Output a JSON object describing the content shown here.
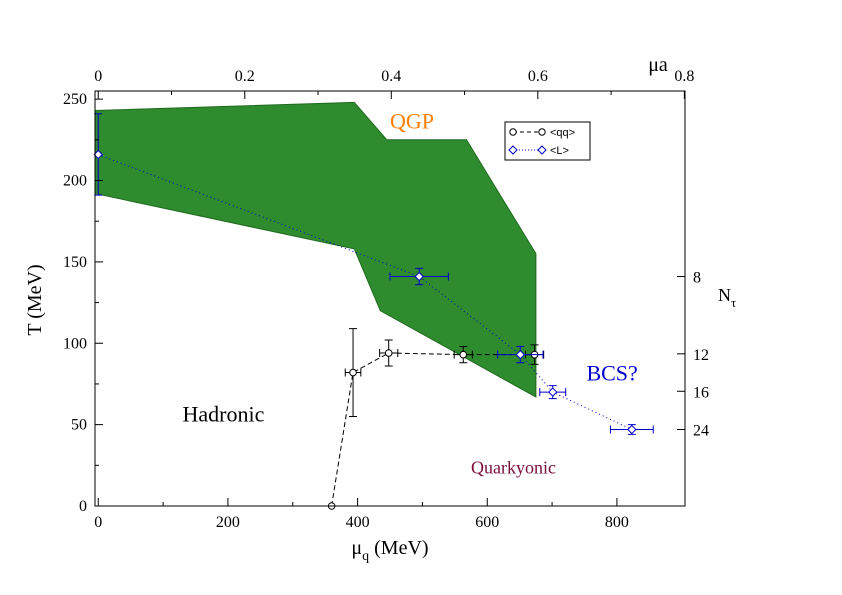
{
  "chart_data": {
    "type": "scatter",
    "title": "",
    "xlabel_main": "μ",
    "xlabel_sub": "q",
    "xlabel_unit": " (MeV)",
    "ylabel": "T (MeV)",
    "xlim": [
      -5,
      905
    ],
    "ylim": [
      0,
      255
    ],
    "x_ticks": [
      0,
      200,
      400,
      600,
      800
    ],
    "x_tick_labels": [
      "0",
      "200",
      "400",
      "600",
      "800"
    ],
    "y_ticks": [
      0,
      50,
      100,
      150,
      200,
      250
    ],
    "y_tick_labels": [
      "0",
      "50",
      "100",
      "150",
      "200",
      "250"
    ],
    "top_axis": {
      "label": "μa",
      "ticks": [
        0,
        0.2,
        0.4,
        0.6,
        0.8
      ],
      "tick_labels": [
        "0",
        "0.2",
        "0.4",
        "0.6",
        "0.8"
      ],
      "mev_per_unit": 1130
    },
    "right_axis": {
      "label_main": "N",
      "label_sub": "τ",
      "ticks_T": [
        141,
        93.5,
        70.5,
        47
      ],
      "tick_labels": [
        "8",
        "12",
        "16",
        "24"
      ]
    },
    "band": {
      "name": "crossover band",
      "color": "#2e8b2e",
      "upper": [
        [
          -5,
          243
        ],
        [
          395,
          248
        ],
        [
          445,
          225
        ],
        [
          568,
          225
        ],
        [
          675,
          155
        ]
      ],
      "lower": [
        [
          675,
          67
        ],
        [
          435,
          120
        ],
        [
          395,
          158
        ],
        [
          -5,
          192
        ]
      ]
    },
    "series": [
      {
        "name": "<qq>",
        "color": "#000000",
        "marker": "circle",
        "line": "dashed",
        "points": [
          {
            "x": 360,
            "y": 0,
            "xerr": 0,
            "yerr": 0
          },
          {
            "x": 393,
            "y": 82,
            "xerr": 12,
            "yerr": 27
          },
          {
            "x": 448,
            "y": 94,
            "xerr": 14,
            "yerr": 8
          },
          {
            "x": 563,
            "y": 93,
            "xerr": 14,
            "yerr": 5
          },
          {
            "x": 673,
            "y": 93,
            "xerr": 14,
            "yerr": 6
          }
        ]
      },
      {
        "name": "<L>",
        "color": "#0000cc",
        "marker": "diamond",
        "line": "dotted",
        "points": [
          {
            "x": 0,
            "y": 216,
            "xerr": 0,
            "yerr": 25
          },
          {
            "x": 495,
            "y": 141,
            "xerr": 45,
            "yerr": 5
          },
          {
            "x": 651,
            "y": 93,
            "xerr": 35,
            "yerr": 5
          },
          {
            "x": 701,
            "y": 70,
            "xerr": 20,
            "yerr": 4
          },
          {
            "x": 823,
            "y": 47,
            "xerr": 33,
            "yerr": 3
          }
        ]
      }
    ],
    "annotations": [
      {
        "text": "QGP",
        "x": 450,
        "y": 232,
        "color": "#ff7f00",
        "size": 22
      },
      {
        "text": "Hadronic",
        "x": 130,
        "y": 52,
        "color": "#000000",
        "size": 22
      },
      {
        "text": "Quarkyonic",
        "x": 575,
        "y": 20,
        "color": "#7a0c3c",
        "size": 18
      },
      {
        "text": "BCS?",
        "x": 753,
        "y": 77,
        "color": "#0000cc",
        "size": 22
      }
    ],
    "legend_position": "top-right"
  }
}
